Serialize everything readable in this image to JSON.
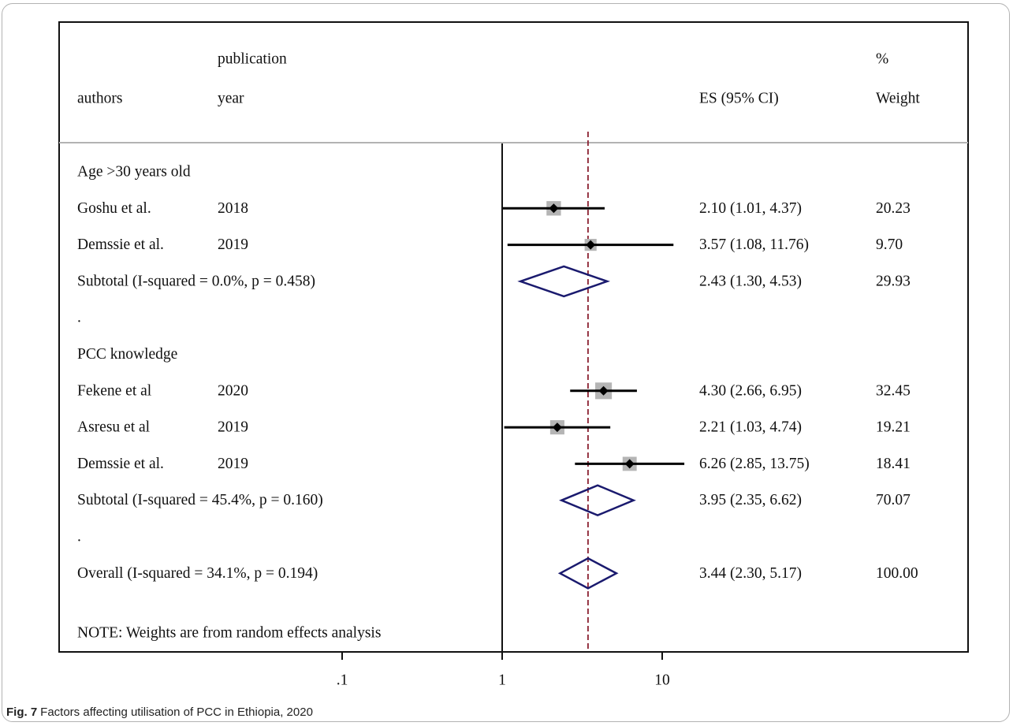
{
  "chart_data": {
    "type": "forest",
    "x_scale": "log",
    "x_ticks": [
      ".1",
      "1",
      "10"
    ],
    "x_tick_values": [
      0.1,
      1,
      10
    ],
    "reference_line": 1,
    "overall_line": 3.44,
    "columns": {
      "authors": "authors",
      "publication_line1": "publication",
      "publication_line2": "year",
      "es": "ES (95% CI)",
      "weight_line1": "%",
      "weight_line2": "Weight"
    },
    "rows": [
      {
        "kind": "header",
        "label": "Age >30 years old"
      },
      {
        "kind": "study",
        "author": "Goshu et al.",
        "year": "2018",
        "es": 2.1,
        "lo": 1.01,
        "hi": 4.37,
        "es_text": "2.10 (1.01, 4.37)",
        "weight": "20.23",
        "weight_value": 20.23
      },
      {
        "kind": "study",
        "author": "Demssie et al.",
        "year": "2019",
        "es": 3.57,
        "lo": 1.08,
        "hi": 11.76,
        "es_text": "3.57 (1.08, 11.76)",
        "weight": "9.70",
        "weight_value": 9.7
      },
      {
        "kind": "subtotal",
        "label": "Subtotal  (I-squared = 0.0%, p = 0.458)",
        "es": 2.43,
        "lo": 1.3,
        "hi": 4.53,
        "es_text": "2.43 (1.30, 4.53)",
        "weight": "29.93"
      },
      {
        "kind": "dot",
        "label": "."
      },
      {
        "kind": "header",
        "label": "PCC knowledge"
      },
      {
        "kind": "study",
        "author": "Fekene et al",
        "year": "2020",
        "es": 4.3,
        "lo": 2.66,
        "hi": 6.95,
        "es_text": "4.30 (2.66, 6.95)",
        "weight": "32.45",
        "weight_value": 32.45
      },
      {
        "kind": "study",
        "author": "Asresu et al",
        "year": "2019",
        "es": 2.21,
        "lo": 1.03,
        "hi": 4.74,
        "es_text": "2.21 (1.03, 4.74)",
        "weight": "19.21",
        "weight_value": 19.21
      },
      {
        "kind": "study",
        "author": "Demssie et al.",
        "year": "2019",
        "es": 6.26,
        "lo": 2.85,
        "hi": 13.75,
        "es_text": "6.26 (2.85, 13.75)",
        "weight": "18.41",
        "weight_value": 18.41
      },
      {
        "kind": "subtotal",
        "label": "Subtotal  (I-squared = 45.4%, p = 0.160)",
        "es": 3.95,
        "lo": 2.35,
        "hi": 6.62,
        "es_text": "3.95 (2.35, 6.62)",
        "weight": "70.07"
      },
      {
        "kind": "dot",
        "label": "."
      },
      {
        "kind": "overall",
        "label": "Overall  (I-squared = 34.1%, p = 0.194)",
        "es": 3.44,
        "lo": 2.3,
        "hi": 5.17,
        "es_text": "3.44 (2.30, 5.17)",
        "weight": "100.00"
      }
    ],
    "note": "NOTE: Weights are from random effects analysis",
    "colors": {
      "box": "#b5b5b5",
      "diamond": "#1a1a6e",
      "overall_line": "#8b2232",
      "axis": "#111111",
      "header_rule": "#b3b3b3"
    }
  },
  "caption": {
    "label": "Fig. 7",
    "text": "Factors affecting utilisation of PCC in Ethiopia, 2020"
  }
}
